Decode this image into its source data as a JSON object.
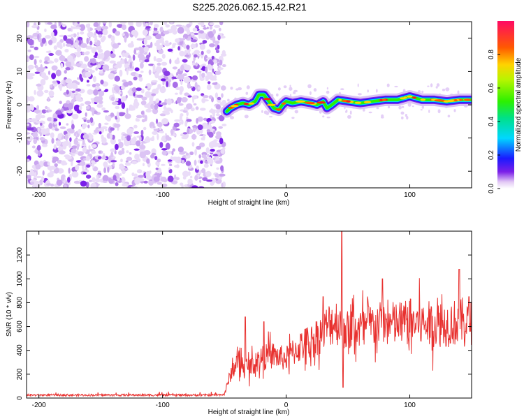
{
  "title": "S225.2026.062.15.42.R21",
  "chart_data": [
    {
      "type": "heatmap",
      "xlabel": "Height of straight line (km)",
      "ylabel": "Frequency (Hz)",
      "xlim": [
        -210,
        150
      ],
      "ylim": [
        -25,
        25
      ],
      "x_ticks": [
        -200,
        -100,
        0,
        100
      ],
      "y_ticks": [
        -20,
        -10,
        0,
        10,
        20
      ],
      "noise_region_x": [
        -210,
        -50
      ],
      "tone_region_x": [
        -50,
        150
      ],
      "tone_trace": [
        {
          "x": -48,
          "y": -2
        },
        {
          "x": -45,
          "y": -1
        },
        {
          "x": -40,
          "y": 0
        },
        {
          "x": -35,
          "y": 0.5
        },
        {
          "x": -30,
          "y": 0
        },
        {
          "x": -25,
          "y": 1
        },
        {
          "x": -22,
          "y": 3
        },
        {
          "x": -18,
          "y": 3
        },
        {
          "x": -14,
          "y": 1
        },
        {
          "x": -10,
          "y": -1
        },
        {
          "x": -6,
          "y": -1.5
        },
        {
          "x": -3,
          "y": 0
        },
        {
          "x": 0,
          "y": 1
        },
        {
          "x": 5,
          "y": 0.5
        },
        {
          "x": 12,
          "y": 1
        },
        {
          "x": 20,
          "y": 0.5
        },
        {
          "x": 25,
          "y": 0
        },
        {
          "x": 30,
          "y": 1
        },
        {
          "x": 33,
          "y": -1
        },
        {
          "x": 37,
          "y": 0
        },
        {
          "x": 42,
          "y": 1.5
        },
        {
          "x": 50,
          "y": 1
        },
        {
          "x": 60,
          "y": 0.5
        },
        {
          "x": 70,
          "y": 1
        },
        {
          "x": 80,
          "y": 1.5
        },
        {
          "x": 90,
          "y": 1.5
        },
        {
          "x": 100,
          "y": 2.5
        },
        {
          "x": 110,
          "y": 1.5
        },
        {
          "x": 120,
          "y": 1.5
        },
        {
          "x": 130,
          "y": 1
        },
        {
          "x": 140,
          "y": 1.5
        },
        {
          "x": 150,
          "y": 1.5
        }
      ],
      "colorbar": {
        "label": "Normalized spectral amplitude",
        "range": [
          0,
          1
        ],
        "ticks": [
          "0.0",
          "0.2",
          "0.4",
          "0.6",
          "0.8"
        ],
        "tick_values": [
          0.0,
          0.2,
          0.4,
          0.6,
          0.8
        ]
      }
    },
    {
      "type": "line",
      "xlabel": "Height of straight line (km)",
      "ylabel": "SNR (10 * v/v)",
      "xlim": [
        -210,
        150
      ],
      "ylim": [
        0,
        1400
      ],
      "x_ticks": [
        -200,
        -100,
        0,
        100
      ],
      "y_ticks": [
        0,
        200,
        400,
        600,
        800,
        1000,
        1200
      ],
      "series": [
        {
          "name": "SNR",
          "color": "#e8312f",
          "x": [
            -210,
            -150,
            -100,
            -60,
            -50,
            -45,
            -40,
            -35,
            -30,
            -25,
            -20,
            -15,
            -10,
            -5,
            0,
            5,
            10,
            15,
            20,
            25,
            30,
            35,
            40,
            45,
            50,
            55,
            60,
            70,
            80,
            90,
            100,
            110,
            120,
            130,
            140,
            150
          ],
          "values": [
            25,
            25,
            25,
            25,
            30,
            200,
            300,
            280,
            260,
            300,
            330,
            350,
            360,
            340,
            330,
            380,
            420,
            460,
            470,
            520,
            560,
            620,
            650,
            620,
            560,
            600,
            580,
            610,
            620,
            620,
            640,
            620,
            620,
            620,
            640,
            650
          ],
          "spikes": [
            {
              "x": -33,
              "y": 680
            },
            {
              "x": -18,
              "y": 640
            },
            {
              "x": 30,
              "y": 850
            },
            {
              "x": 45,
              "y": 1400
            },
            {
              "x": 46,
              "y": 90
            },
            {
              "x": 78,
              "y": 1000
            },
            {
              "x": 140,
              "y": 1080
            },
            {
              "x": 148,
              "y": 850
            }
          ]
        }
      ]
    }
  ]
}
